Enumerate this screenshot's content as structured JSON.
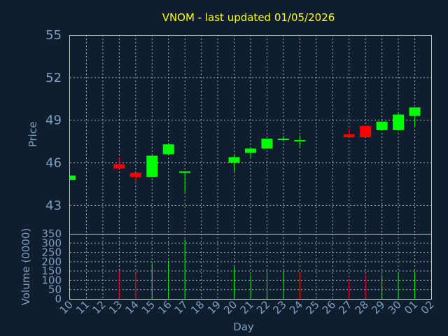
{
  "title": "VNOM - last updated 01/05/2026",
  "colors": {
    "background": "#0f1e2e",
    "up": "#00ff00",
    "down": "#ff0000",
    "title": "#ffff00",
    "axis_text": "#7f9fbf",
    "grid": "#c8c8c8"
  },
  "chart_data": [
    {
      "type": "candlestick",
      "ylabel": "Price",
      "ylim": [
        41,
        55
      ],
      "yticks": [
        "55",
        "52",
        "49",
        "46",
        "43"
      ],
      "grid": true,
      "candles": [
        {
          "day": "10",
          "open": 44.8,
          "high": 45.1,
          "low": 44.8,
          "close": 45.1
        },
        {
          "day": "13",
          "open": 45.9,
          "high": 46.4,
          "low": 45.6,
          "close": 45.6
        },
        {
          "day": "14",
          "open": 45.3,
          "high": 45.3,
          "low": 44.6,
          "close": 45.0
        },
        {
          "day": "15",
          "open": 45.0,
          "high": 46.5,
          "low": 45.0,
          "close": 46.5
        },
        {
          "day": "16",
          "open": 46.6,
          "high": 47.4,
          "low": 46.6,
          "close": 47.3
        },
        {
          "day": "17",
          "open": 45.3,
          "high": 45.4,
          "low": 43.9,
          "close": 45.4
        },
        {
          "day": "20",
          "open": 46.0,
          "high": 46.6,
          "low": 45.4,
          "close": 46.4
        },
        {
          "day": "21",
          "open": 46.7,
          "high": 47.1,
          "low": 46.3,
          "close": 47.0
        },
        {
          "day": "22",
          "open": 47.0,
          "high": 47.7,
          "low": 47.0,
          "close": 47.7
        },
        {
          "day": "23",
          "open": 47.6,
          "high": 47.9,
          "low": 47.5,
          "close": 47.7
        },
        {
          "day": "24",
          "open": 47.6,
          "high": 47.9,
          "low": 47.1,
          "close": 47.6
        },
        {
          "day": "27",
          "open": 48.0,
          "high": 48.4,
          "low": 47.8,
          "close": 47.8
        },
        {
          "day": "28",
          "open": 48.6,
          "high": 48.6,
          "low": 47.8,
          "close": 47.8
        },
        {
          "day": "29",
          "open": 48.3,
          "high": 48.9,
          "low": 48.3,
          "close": 48.9
        },
        {
          "day": "30",
          "open": 48.3,
          "high": 49.5,
          "low": 48.3,
          "close": 49.4
        },
        {
          "day": "01",
          "open": 49.3,
          "high": 49.9,
          "low": 48.5,
          "close": 49.9
        }
      ]
    },
    {
      "type": "bar",
      "ylabel": "Volume (0000)",
      "xlabel": "Day",
      "ylim": [
        0,
        350
      ],
      "yticks": [
        "350",
        "300",
        "250",
        "200",
        "150",
        "100",
        "50",
        "0"
      ],
      "grid": true,
      "categories": [
        "10",
        "11",
        "12",
        "13",
        "14",
        "15",
        "16",
        "17",
        "18",
        "19",
        "20",
        "21",
        "22",
        "23",
        "24",
        "25",
        "26",
        "27",
        "28",
        "29",
        "30",
        "01",
        "02"
      ],
      "bars": [
        {
          "day": "10",
          "value": 5,
          "color": "#00ff00"
        },
        {
          "day": "13",
          "value": 150,
          "color": "#ff0000"
        },
        {
          "day": "14",
          "value": 140,
          "color": "#ff0000"
        },
        {
          "day": "15",
          "value": 190,
          "color": "#00ff00"
        },
        {
          "day": "16",
          "value": 205,
          "color": "#00ff00"
        },
        {
          "day": "17",
          "value": 320,
          "color": "#00ff00"
        },
        {
          "day": "20",
          "value": 170,
          "color": "#00ff00"
        },
        {
          "day": "21",
          "value": 130,
          "color": "#00ff00"
        },
        {
          "day": "22",
          "value": 145,
          "color": "#00ff00"
        },
        {
          "day": "23",
          "value": 150,
          "color": "#00ff00"
        },
        {
          "day": "24",
          "value": 145,
          "color": "#ff0000"
        },
        {
          "day": "27",
          "value": 100,
          "color": "#ff0000"
        },
        {
          "day": "28",
          "value": 130,
          "color": "#ff0000"
        },
        {
          "day": "29",
          "value": 130,
          "color": "#00ff00"
        },
        {
          "day": "30",
          "value": 145,
          "color": "#00ff00"
        },
        {
          "day": "01",
          "value": 150,
          "color": "#00ff00"
        }
      ]
    }
  ]
}
